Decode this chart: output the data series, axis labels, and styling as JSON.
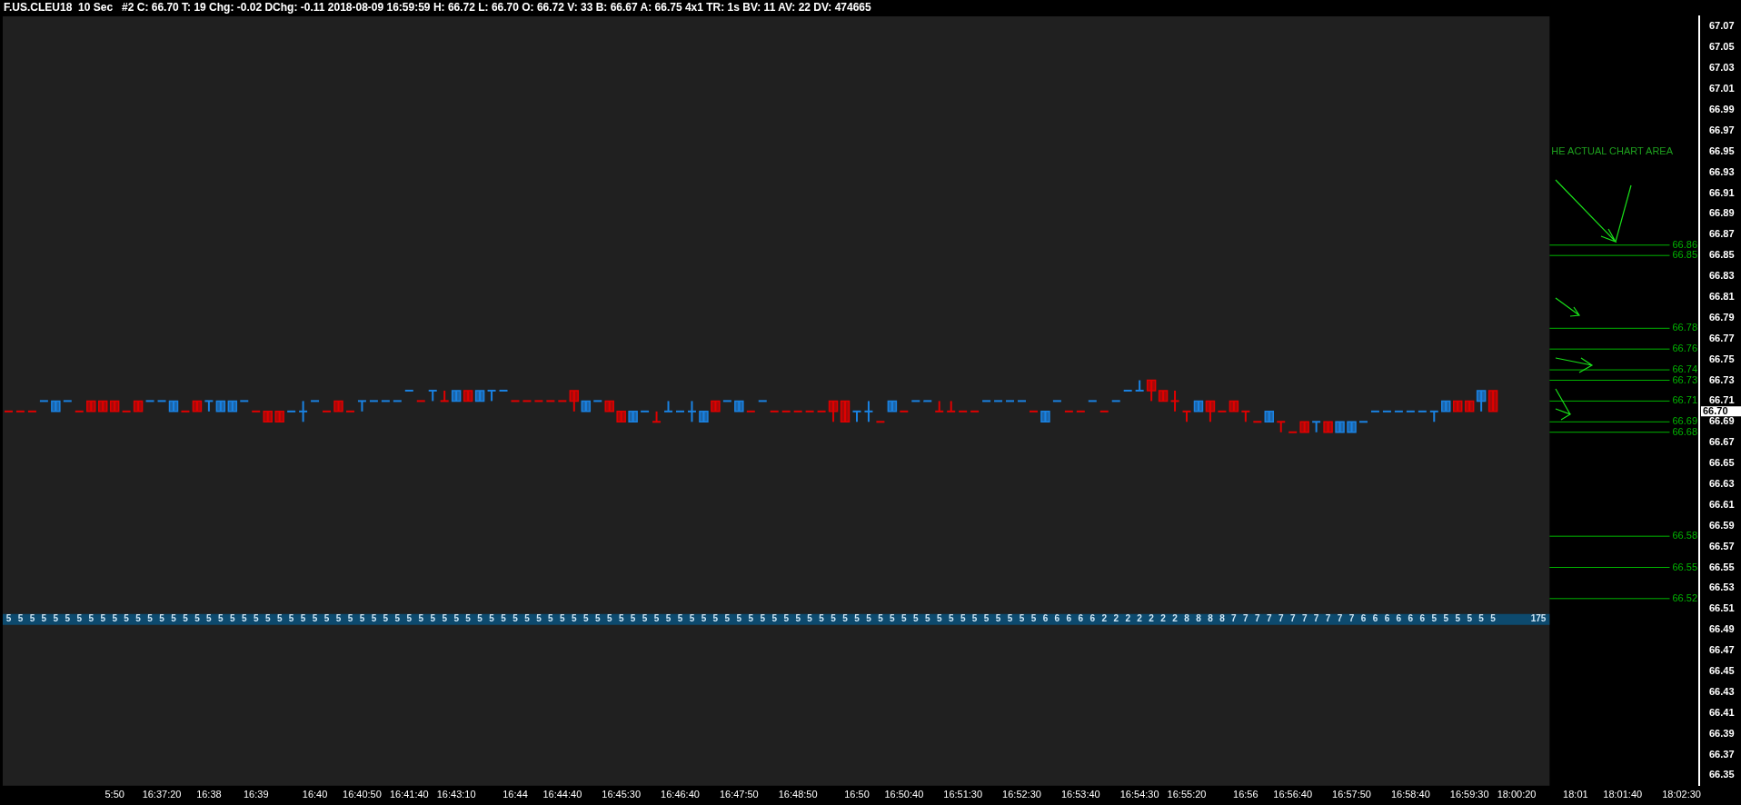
{
  "chart_data": {
    "type": "candlestick",
    "title": "F.US.CLEU18  10 Sec   #2 C: 66.70 T: 19 Chg: -0.02 DChg: -0.11 2018-08-09 16:59:59 H: 66.72 L: 66.70 O: 66.72 V: 33 B: 66.67 A: 66.75 4x1 TR: 1s BV: 11 AV: 22 DV: 474665",
    "categories": [
      null,
      null,
      null,
      null,
      null,
      null,
      null,
      null,
      null,
      "5:50",
      null,
      null,
      null,
      "16:37:20",
      null,
      null,
      null,
      "16:38",
      null,
      null,
      null,
      "16:39",
      null,
      null,
      null,
      null,
      "16:40",
      null,
      null,
      null,
      "16:40:50",
      null,
      null,
      null,
      "16:41:40",
      null,
      null,
      null,
      "16:43:10",
      null,
      null,
      null,
      null,
      "16:44",
      null,
      null,
      null,
      "16:44:40",
      null,
      null,
      null,
      null,
      "16:45:30",
      null,
      null,
      null,
      null,
      "16:46:40",
      null,
      null,
      null,
      null,
      "16:47:50",
      null,
      null,
      null,
      null,
      "16:48:50",
      null,
      null,
      null,
      null,
      "16:50",
      null,
      null,
      null,
      "16:50:40",
      null,
      null,
      null,
      null,
      "16:51:30",
      null,
      null,
      null,
      null,
      "16:52:30",
      null,
      null,
      null,
      null,
      "16:53:40",
      null,
      null,
      null,
      null,
      "16:54:30",
      null,
      null,
      null,
      "16:55:20",
      null,
      null,
      null,
      null,
      "16:56",
      null,
      null,
      null,
      "16:56:40",
      null,
      null,
      null,
      null,
      "16:57:50",
      null,
      null,
      null,
      null,
      "16:58:40",
      null,
      null,
      null,
      null,
      "16:59:30",
      null,
      null,
      null,
      "18:00:20",
      null,
      null,
      null,
      null,
      "18:01",
      null,
      null,
      null,
      "18:01:40",
      null,
      null,
      null,
      null,
      "18:02:30",
      null
    ],
    "ohlc": [
      [
        66.7,
        66.7,
        66.7,
        66.7
      ],
      [
        66.7,
        66.7,
        66.7,
        66.7
      ],
      [
        66.7,
        66.7,
        66.7,
        66.7
      ],
      [
        66.71,
        66.71,
        66.71,
        66.71
      ],
      [
        66.7,
        66.71,
        66.7,
        66.71
      ],
      [
        66.71,
        66.71,
        66.71,
        66.71
      ],
      [
        66.7,
        66.7,
        66.7,
        66.7
      ],
      [
        66.71,
        66.71,
        66.7,
        66.7
      ],
      [
        66.71,
        66.71,
        66.7,
        66.7
      ],
      [
        66.71,
        66.71,
        66.7,
        66.7
      ],
      [
        66.7,
        66.7,
        66.7,
        66.7
      ],
      [
        66.71,
        66.71,
        66.7,
        66.7
      ],
      [
        66.71,
        66.71,
        66.71,
        66.71
      ],
      [
        66.71,
        66.71,
        66.71,
        66.71
      ],
      [
        66.7,
        66.71,
        66.7,
        66.71
      ],
      [
        66.7,
        66.7,
        66.7,
        66.7
      ],
      [
        66.71,
        66.71,
        66.7,
        66.7
      ],
      [
        66.71,
        66.71,
        66.7,
        66.71
      ],
      [
        66.7,
        66.71,
        66.7,
        66.71
      ],
      [
        66.7,
        66.71,
        66.7,
        66.71
      ],
      [
        66.71,
        66.71,
        66.71,
        66.71
      ],
      [
        66.7,
        66.7,
        66.7,
        66.7
      ],
      [
        66.7,
        66.7,
        66.69,
        66.69
      ],
      [
        66.7,
        66.7,
        66.69,
        66.69
      ],
      [
        66.7,
        66.7,
        66.7,
        66.7
      ],
      [
        66.7,
        66.71,
        66.69,
        66.7
      ],
      [
        66.71,
        66.71,
        66.71,
        66.71
      ],
      [
        66.7,
        66.7,
        66.7,
        66.7
      ],
      [
        66.71,
        66.71,
        66.7,
        66.7
      ],
      [
        66.7,
        66.7,
        66.7,
        66.7
      ],
      [
        66.71,
        66.71,
        66.7,
        66.71
      ],
      [
        66.71,
        66.71,
        66.71,
        66.71
      ],
      [
        66.71,
        66.71,
        66.71,
        66.71
      ],
      [
        66.71,
        66.71,
        66.71,
        66.71
      ],
      [
        66.72,
        66.72,
        66.72,
        66.72
      ],
      [
        66.71,
        66.71,
        66.71,
        66.71
      ],
      [
        66.72,
        66.72,
        66.71,
        66.72
      ],
      [
        66.71,
        66.72,
        66.71,
        66.71
      ],
      [
        66.71,
        66.72,
        66.71,
        66.72
      ],
      [
        66.72,
        66.72,
        66.71,
        66.71
      ],
      [
        66.71,
        66.72,
        66.71,
        66.72
      ],
      [
        66.72,
        66.72,
        66.71,
        66.72
      ],
      [
        66.72,
        66.72,
        66.72,
        66.72
      ],
      [
        66.71,
        66.71,
        66.71,
        66.71
      ],
      [
        66.71,
        66.71,
        66.71,
        66.71
      ],
      [
        66.71,
        66.71,
        66.71,
        66.71
      ],
      [
        66.71,
        66.71,
        66.71,
        66.71
      ],
      [
        66.71,
        66.71,
        66.71,
        66.71
      ],
      [
        66.72,
        66.72,
        66.7,
        66.71
      ],
      [
        66.7,
        66.71,
        66.7,
        66.71
      ],
      [
        66.71,
        66.71,
        66.71,
        66.71
      ],
      [
        66.71,
        66.71,
        66.7,
        66.7
      ],
      [
        66.7,
        66.7,
        66.69,
        66.69
      ],
      [
        66.69,
        66.7,
        66.69,
        66.7
      ],
      [
        66.7,
        66.7,
        66.7,
        66.7
      ],
      [
        66.69,
        66.7,
        66.69,
        66.69
      ],
      [
        66.7,
        66.71,
        66.7,
        66.7
      ],
      [
        66.7,
        66.7,
        66.7,
        66.7
      ],
      [
        66.7,
        66.71,
        66.69,
        66.7
      ],
      [
        66.69,
        66.7,
        66.69,
        66.7
      ],
      [
        66.71,
        66.71,
        66.7,
        66.7
      ],
      [
        66.71,
        66.71,
        66.71,
        66.71
      ],
      [
        66.7,
        66.71,
        66.7,
        66.71
      ],
      [
        66.7,
        66.7,
        66.7,
        66.7
      ],
      [
        66.71,
        66.71,
        66.71,
        66.71
      ],
      [
        66.7,
        66.7,
        66.7,
        66.7
      ],
      [
        66.7,
        66.7,
        66.7,
        66.7
      ],
      [
        66.7,
        66.7,
        66.7,
        66.7
      ],
      [
        66.7,
        66.7,
        66.7,
        66.7
      ],
      [
        66.7,
        66.7,
        66.7,
        66.7
      ],
      [
        66.71,
        66.71,
        66.69,
        66.7
      ],
      [
        66.71,
        66.71,
        66.69,
        66.69
      ],
      [
        66.7,
        66.7,
        66.69,
        66.7
      ],
      [
        66.7,
        66.71,
        66.69,
        66.7
      ],
      [
        66.69,
        66.69,
        66.69,
        66.69
      ],
      [
        66.7,
        66.71,
        66.7,
        66.71
      ],
      [
        66.7,
        66.7,
        66.7,
        66.7
      ],
      [
        66.71,
        66.71,
        66.71,
        66.71
      ],
      [
        66.71,
        66.71,
        66.71,
        66.71
      ],
      [
        66.7,
        66.71,
        66.7,
        66.7
      ],
      [
        66.7,
        66.71,
        66.7,
        66.7
      ],
      [
        66.7,
        66.7,
        66.7,
        66.7
      ],
      [
        66.7,
        66.7,
        66.7,
        66.7
      ],
      [
        66.71,
        66.71,
        66.71,
        66.71
      ],
      [
        66.71,
        66.71,
        66.71,
        66.71
      ],
      [
        66.71,
        66.71,
        66.71,
        66.71
      ],
      [
        66.71,
        66.71,
        66.71,
        66.71
      ],
      [
        66.7,
        66.7,
        66.7,
        66.7
      ],
      [
        66.69,
        66.7,
        66.69,
        66.7
      ],
      [
        66.71,
        66.71,
        66.71,
        66.71
      ],
      [
        66.7,
        66.7,
        66.7,
        66.7
      ],
      [
        66.7,
        66.7,
        66.7,
        66.7
      ],
      [
        66.71,
        66.71,
        66.71,
        66.71
      ],
      [
        66.7,
        66.7,
        66.7,
        66.7
      ],
      [
        66.71,
        66.71,
        66.71,
        66.71
      ],
      [
        66.72,
        66.72,
        66.72,
        66.72
      ],
      [
        66.72,
        66.73,
        66.72,
        66.72
      ],
      [
        66.73,
        66.73,
        66.71,
        66.72
      ],
      [
        66.72,
        66.72,
        66.71,
        66.71
      ],
      [
        66.71,
        66.72,
        66.7,
        66.71
      ],
      [
        66.7,
        66.7,
        66.69,
        66.7
      ],
      [
        66.7,
        66.71,
        66.7,
        66.71
      ],
      [
        66.71,
        66.71,
        66.69,
        66.7
      ],
      [
        66.7,
        66.7,
        66.7,
        66.7
      ],
      [
        66.71,
        66.71,
        66.7,
        66.7
      ],
      [
        66.7,
        66.7,
        66.69,
        66.7
      ],
      [
        66.69,
        66.69,
        66.69,
        66.69
      ],
      [
        66.69,
        66.7,
        66.69,
        66.7
      ],
      [
        66.69,
        66.69,
        66.68,
        66.69
      ],
      [
        66.68,
        66.68,
        66.68,
        66.68
      ],
      [
        66.69,
        66.69,
        66.68,
        66.68
      ],
      [
        66.69,
        66.69,
        66.68,
        66.69
      ],
      [
        66.69,
        66.69,
        66.68,
        66.68
      ],
      [
        66.68,
        66.69,
        66.68,
        66.69
      ],
      [
        66.68,
        66.69,
        66.68,
        66.69
      ],
      [
        66.69,
        66.69,
        66.69,
        66.69
      ],
      [
        66.7,
        66.7,
        66.7,
        66.7
      ],
      [
        66.7,
        66.7,
        66.7,
        66.7
      ],
      [
        66.7,
        66.7,
        66.7,
        66.7
      ],
      [
        66.7,
        66.7,
        66.7,
        66.7
      ],
      [
        66.7,
        66.7,
        66.7,
        66.7
      ],
      [
        66.7,
        66.7,
        66.69,
        66.7
      ],
      [
        66.7,
        66.71,
        66.7,
        66.71
      ],
      [
        66.71,
        66.71,
        66.7,
        66.7
      ],
      [
        66.71,
        66.71,
        66.7,
        66.7
      ],
      [
        66.71,
        66.72,
        66.7,
        66.72
      ],
      [
        66.72,
        66.72,
        66.7,
        66.7
      ],
      null,
      null,
      null,
      null,
      null,
      null,
      null,
      null,
      null,
      null,
      null,
      null,
      null,
      null,
      null,
      null,
      null
    ],
    "colors": [
      "#e00000",
      "#e00000",
      "#e00000",
      "#1a82e2",
      "#1a82e2",
      "#1a82e2",
      "#e00000",
      "#e00000",
      "#e00000",
      "#e00000",
      "#e00000",
      "#e00000",
      "#1a82e2",
      "#1a82e2",
      "#1a82e2",
      "#e00000",
      "#e00000",
      "#1a82e2",
      "#1a82e2",
      "#1a82e2",
      "#1a82e2",
      "#e00000",
      "#e00000",
      "#e00000",
      "#1a82e2",
      "#1a82e2",
      "#1a82e2",
      "#e00000",
      "#e00000",
      "#e00000",
      "#1a82e2",
      "#1a82e2",
      "#1a82e2",
      "#1a82e2",
      "#1a82e2",
      "#e00000",
      "#1a82e2",
      "#e00000",
      "#1a82e2",
      "#e00000",
      "#1a82e2",
      "#1a82e2",
      "#1a82e2",
      "#e00000",
      "#e00000",
      "#e00000",
      "#e00000",
      "#e00000",
      "#e00000",
      "#1a82e2",
      "#1a82e2",
      "#e00000",
      "#e00000",
      "#1a82e2",
      "#1a82e2",
      "#e00000",
      "#1a82e2",
      "#1a82e2",
      "#1a82e2",
      "#1a82e2",
      "#e00000",
      "#1a82e2",
      "#1a82e2",
      "#e00000",
      "#1a82e2",
      "#e00000",
      "#e00000",
      "#e00000",
      "#e00000",
      "#e00000",
      "#e00000",
      "#e00000",
      "#1a82e2",
      "#1a82e2",
      "#e00000",
      "#1a82e2",
      "#e00000",
      "#1a82e2",
      "#1a82e2",
      "#e00000",
      "#e00000",
      "#e00000",
      "#e00000",
      "#1a82e2",
      "#1a82e2",
      "#1a82e2",
      "#1a82e2",
      "#e00000",
      "#1a82e2",
      "#1a82e2",
      "#e00000",
      "#e00000",
      "#1a82e2",
      "#e00000",
      "#1a82e2",
      "#1a82e2",
      "#1a82e2",
      "#e00000",
      "#e00000",
      "#e00000",
      "#e00000",
      "#1a82e2",
      "#e00000",
      "#e00000",
      "#e00000",
      "#e00000",
      "#e00000",
      "#1a82e2",
      "#e00000",
      "#e00000",
      "#e00000",
      "#1a82e2",
      "#e00000",
      "#1a82e2",
      "#1a82e2",
      "#1a82e2",
      "#1a82e2",
      "#1a82e2",
      "#1a82e2",
      "#1a82e2",
      "#1a82e2",
      "#1a82e2",
      "#1a82e2",
      "#e00000",
      "#e00000",
      "#1a82e2",
      "#e00000",
      null,
      null,
      null,
      null,
      null,
      null,
      null,
      null,
      null,
      null,
      null,
      null,
      null,
      null,
      null,
      null,
      null
    ],
    "ylim": [
      66.34,
      67.08
    ],
    "yticks": [
      66.35,
      66.37,
      66.39,
      66.41,
      66.43,
      66.45,
      66.47,
      66.49,
      66.51,
      66.53,
      66.55,
      66.57,
      66.59,
      66.61,
      66.63,
      66.65,
      66.67,
      66.69,
      66.71,
      66.73,
      66.75,
      66.77,
      66.79,
      66.81,
      66.83,
      66.85,
      66.87,
      66.89,
      66.91,
      66.93,
      66.95,
      66.97,
      66.99,
      67.01,
      67.03,
      67.05,
      67.07
    ],
    "ref_lines": [
      {
        "axis": "y",
        "value": 66.86,
        "label": "66.86",
        "color": "#00b400"
      },
      {
        "axis": "y",
        "value": 66.85,
        "label": "66.85",
        "color": "#00b400"
      },
      {
        "axis": "y",
        "value": 66.78,
        "label": "66.78",
        "color": "#00b400"
      },
      {
        "axis": "y",
        "value": 66.76,
        "label": "66.76",
        "color": "#00b400"
      },
      {
        "axis": "y",
        "value": 66.74,
        "label": "66.74",
        "color": "#00b400"
      },
      {
        "axis": "y",
        "value": 66.73,
        "label": "66.73",
        "color": "#00b400"
      },
      {
        "axis": "y",
        "value": 66.71,
        "label": "66.71",
        "color": "#00b400"
      },
      {
        "axis": "y",
        "value": 66.69,
        "label": "66.69",
        "color": "#00b400"
      },
      {
        "axis": "y",
        "value": 66.68,
        "label": "66.68",
        "color": "#00b400"
      },
      {
        "axis": "y",
        "value": 66.58,
        "label": "66.58",
        "color": "#00b400"
      },
      {
        "axis": "y",
        "value": 66.55,
        "label": "66.55",
        "color": "#00b400"
      },
      {
        "axis": "y",
        "value": 66.52,
        "label": "66.52",
        "color": "#00b400"
      }
    ],
    "annotations": [
      "HE ACTUAL CHART AREA",
      "5 5 5 5 5 5 5 5 5 5 5 5 5 5 5 5 5 5 5 5 5 5 5 5 5 5 5 5 5 5 5 5 5 5 5 5 5 5 5 5 5 5 5 5 5 5 5 5 5 5 5 5 5 5 5 5 5 5 5 5 5 5 5 5 5 5 5 5 5 5 5 5 5 5 5 5 5 5 5 5 5 5 5 5 5 5 5 5 6 6 6 6 6 2 2 2 2 2 2 2 8 8 8 8 7 7 7 7 7 7 7 7 7 7 7 6 6 6 6 6 6 5 5 5 5 5 5 175",
      "66.70"
    ]
  }
}
